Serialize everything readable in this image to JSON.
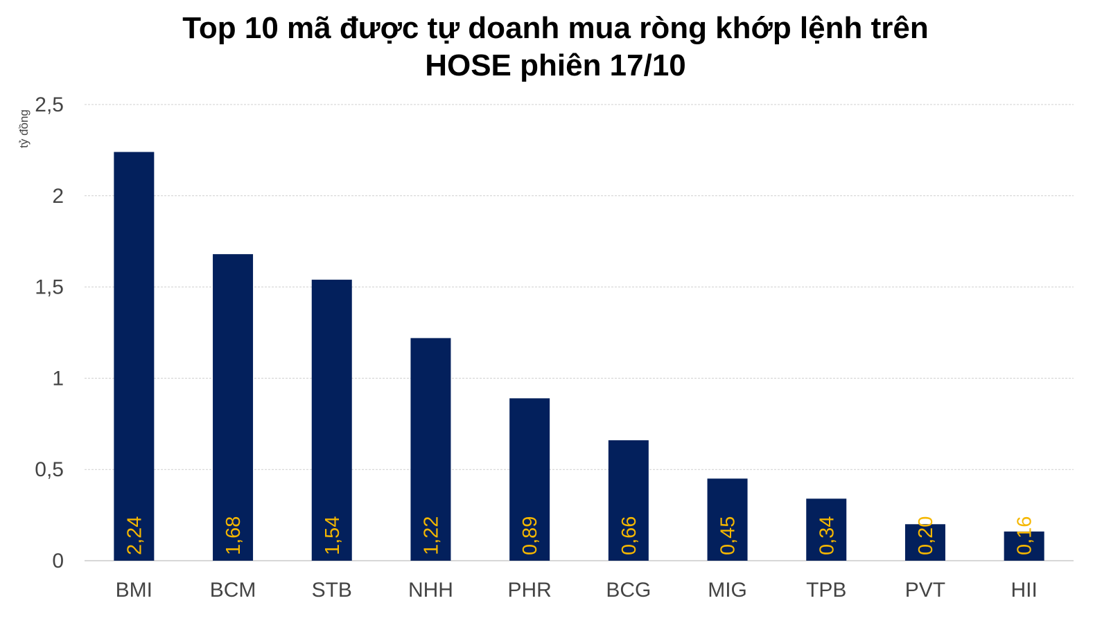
{
  "chart_data": {
    "type": "bar",
    "title": "Top 10 mã được tự doanh mua ròng khớp lệnh trên HOSE phiên 17/10",
    "title_lines": [
      "Top 10 mã được tự doanh mua ròng khớp lệnh trên",
      "HOSE phiên 17/10"
    ],
    "ylabel": "tỷ đồng",
    "xlabel": "",
    "ylim": [
      0,
      2.5
    ],
    "yticks": [
      0,
      0.5,
      1,
      1.5,
      2,
      2.5
    ],
    "ytick_labels": [
      "0",
      "0,5",
      "1",
      "1,5",
      "2",
      "2,5"
    ],
    "categories": [
      "BMI",
      "BCM",
      "STB",
      "NHH",
      "PHR",
      "BCG",
      "MIG",
      "TPB",
      "PVT",
      "HII"
    ],
    "values": [
      2.24,
      1.68,
      1.54,
      1.22,
      0.89,
      0.66,
      0.45,
      0.34,
      0.2,
      0.16
    ],
    "data_labels": [
      "2,24",
      "1,68",
      "1,54",
      "1,22",
      "0,89",
      "0,66",
      "0,45",
      "0,34",
      "0,20",
      "0,16"
    ],
    "grid": true,
    "legend": "none",
    "colors": {
      "bar": "#03205C",
      "data_label": "#F5B700",
      "grid": "#CFCFCF",
      "axis_line": "#BFBFBF",
      "tick_text": "#444444",
      "title_text": "#000000"
    }
  }
}
